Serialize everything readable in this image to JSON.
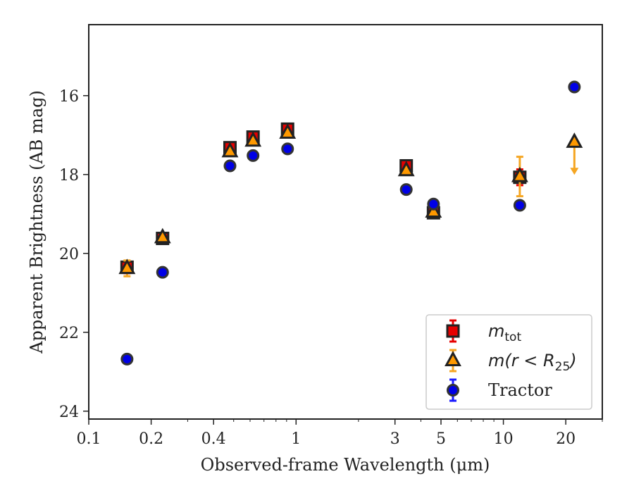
{
  "chart_data": {
    "type": "scatter",
    "xlabel": "Observed-frame Wavelength (μm)",
    "ylabel": "Apparent Brightness (AB mag)",
    "x_scale": "log",
    "xlim": [
      0.1,
      30
    ],
    "ylim": [
      24.2,
      14.2
    ],
    "y_inverted": true,
    "x_ticks": [
      {
        "value": 0.1,
        "label": "0.1"
      },
      {
        "value": 0.2,
        "label": "0.2"
      },
      {
        "value": 0.4,
        "label": "0.4"
      },
      {
        "value": 1,
        "label": "1"
      },
      {
        "value": 3,
        "label": "3"
      },
      {
        "value": 5,
        "label": "5"
      },
      {
        "value": 10,
        "label": "10"
      },
      {
        "value": 20,
        "label": "20"
      }
    ],
    "y_ticks": [
      {
        "value": 16,
        "label": "16"
      },
      {
        "value": 18,
        "label": "18"
      },
      {
        "value": 20,
        "label": "20"
      },
      {
        "value": 22,
        "label": "22"
      },
      {
        "value": 24,
        "label": "24"
      }
    ],
    "grid": false,
    "legend_position": "bottom-right",
    "legend_entries": [
      {
        "label_main": "m",
        "label_sub": "tot",
        "label_rest": "",
        "marker": "square",
        "face": "#e60000",
        "edge": "#222222",
        "errcolor": "#e60000"
      },
      {
        "label_main": "m(r < R",
        "label_sub": "25",
        "label_rest": ")",
        "marker": "triangle",
        "face": "#ff9900",
        "edge": "#222222",
        "errcolor": "#f5a623"
      },
      {
        "label_main": "Tractor",
        "label_sub": "",
        "label_rest": "",
        "marker": "circle",
        "face": "#0000e6",
        "edge": "#333333",
        "errcolor": "#1a1aff"
      }
    ],
    "series": [
      {
        "name": "m_tot",
        "marker": "square",
        "face": "#e60000",
        "edge": "#222222",
        "errcolor": "#e60000",
        "points": [
          {
            "x": 0.153,
            "y": 20.35,
            "yerr": 0.15
          },
          {
            "x": 0.227,
            "y": 19.62,
            "yerr": 0.05
          },
          {
            "x": 0.48,
            "y": 17.32,
            "yerr": 0.05
          },
          {
            "x": 0.62,
            "y": 17.05,
            "yerr": 0.05
          },
          {
            "x": 0.91,
            "y": 16.85,
            "yerr": 0.05
          },
          {
            "x": 3.4,
            "y": 17.78,
            "yerr": 0.05
          },
          {
            "x": 4.6,
            "y": 18.97,
            "yerr": 0.05
          },
          {
            "x": 12.0,
            "y": 18.07,
            "yerr": 0.2
          }
        ]
      },
      {
        "name": "m(r<R25)",
        "marker": "triangle",
        "face": "#ff9900",
        "edge": "#222222",
        "errcolor": "#f5a623",
        "points": [
          {
            "x": 0.153,
            "y": 20.38,
            "yerr": 0.2
          },
          {
            "x": 0.227,
            "y": 19.6,
            "yerr": 0.05
          },
          {
            "x": 0.48,
            "y": 17.42,
            "yerr": 0.05
          },
          {
            "x": 0.62,
            "y": 17.15,
            "yerr": 0.05
          },
          {
            "x": 0.91,
            "y": 16.95,
            "yerr": 0.05
          },
          {
            "x": 3.4,
            "y": 17.9,
            "yerr": 0.05
          },
          {
            "x": 4.6,
            "y": 18.95,
            "yerr": 0.05
          },
          {
            "x": 12.0,
            "y": 18.05,
            "yerr": 0.5
          },
          {
            "x": 22.0,
            "y": 17.18,
            "yerr": 0,
            "upper_limit": true,
            "arrow_to": 17.9
          }
        ]
      },
      {
        "name": "Tractor",
        "marker": "circle",
        "face": "#0000e6",
        "edge": "#333333",
        "errcolor": "#1a1aff",
        "points": [
          {
            "x": 0.153,
            "y": 22.68,
            "yerr": 0.05
          },
          {
            "x": 0.227,
            "y": 20.48,
            "yerr": 0.05
          },
          {
            "x": 0.48,
            "y": 17.78,
            "yerr": 0.05
          },
          {
            "x": 0.62,
            "y": 17.52,
            "yerr": 0.05
          },
          {
            "x": 0.91,
            "y": 17.35,
            "yerr": 0.05
          },
          {
            "x": 3.4,
            "y": 18.38,
            "yerr": 0.05
          },
          {
            "x": 4.6,
            "y": 18.75,
            "yerr": 0.05
          },
          {
            "x": 12.0,
            "y": 18.78,
            "yerr": 0.05
          },
          {
            "x": 22.0,
            "y": 15.78,
            "yerr": 0.05
          }
        ]
      }
    ]
  }
}
